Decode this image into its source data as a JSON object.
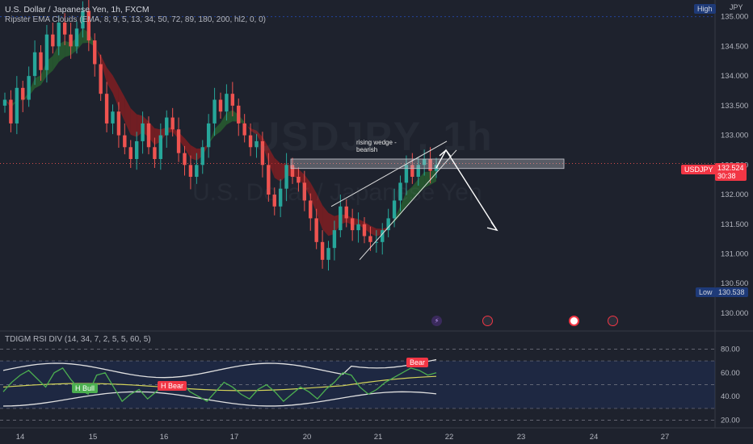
{
  "header": {
    "title": "U.S. Dollar / Japanese Yen, 1h, FXCM",
    "indicator": "Ripster EMA Clouds (EMA, 8, 9, 5, 13, 34, 50, 72, 89, 180, 200, hl2, 0, 0)",
    "currency": "JPY"
  },
  "watermark": {
    "symbol": "USDJPY, 1h",
    "name": "U.S. Dollar / Japanese Yen"
  },
  "tags": {
    "high": "High",
    "low": "Low",
    "low_value": "130.538",
    "symbol": "USDJPY",
    "price": "132.524",
    "countdown": "30:38"
  },
  "annotation": {
    "line1": "rising wedge -",
    "line2": "bearish"
  },
  "events": [
    {
      "icon": "lightning-event-icon",
      "color": "#7b3fbf"
    },
    {
      "icon": "us-flag-event-icon",
      "color": "#f23645"
    },
    {
      "icon": "japan-flag-event-icon",
      "color": "#f23645"
    },
    {
      "icon": "us-flag-event-icon",
      "color": "#f23645"
    }
  ],
  "rsi": {
    "title": "TDIGM RSI DIV (14, 34, 7, 2, 5, 5, 60, 5)",
    "labels": {
      "h_bull": "H Bull",
      "h_bear_1": "H Bear",
      "h_bear_2": "Bear"
    }
  },
  "colors": {
    "background": "#1e222d",
    "up": "#26a69a",
    "down": "#ef5350",
    "cloud_bull": "#2e7d32",
    "cloud_bear": "#b71c1c",
    "accent": "#2962ff"
  },
  "chart_data": [
    {
      "type": "candlestick",
      "title": "U.S. Dollar / Japanese Yen, 1h, FXCM",
      "ylabel": "JPY",
      "ylim": [
        129.7,
        135.2
      ],
      "yticks": [
        130.0,
        130.5,
        131.0,
        131.5,
        132.0,
        132.5,
        133.0,
        133.5,
        134.0,
        134.5,
        135.0
      ],
      "x_day_labels": [
        "14",
        "15",
        "16",
        "17",
        "20",
        "21",
        "22",
        "23",
        "24",
        "27"
      ],
      "current_price": 132.524,
      "session_high_line": 135.0,
      "session_low": 130.538,
      "resistance_zone": [
        132.44,
        132.6
      ],
      "close_path": [
        133.6,
        133.2,
        133.8,
        133.6,
        134.0,
        134.4,
        134.1,
        134.7,
        134.5,
        134.9,
        134.7,
        134.5,
        134.8,
        135.1,
        134.6,
        134.2,
        133.7,
        133.2,
        133.4,
        133.0,
        132.8,
        132.6,
        132.9,
        133.2,
        132.8,
        132.6,
        133.0,
        133.3,
        133.1,
        132.7,
        132.5,
        132.3,
        132.5,
        132.8,
        133.2,
        133.6,
        133.4,
        133.7,
        133.5,
        133.2,
        133.0,
        132.8,
        132.9,
        132.5,
        132.0,
        131.8,
        132.1,
        132.5,
        132.3,
        132.2,
        131.9,
        131.6,
        131.2,
        130.9,
        131.1,
        131.4,
        131.8,
        131.6,
        131.4,
        131.5,
        131.3,
        131.2,
        131.2,
        131.4,
        131.6,
        131.9,
        132.2,
        132.5,
        132.3,
        132.5,
        132.6,
        132.4,
        132.5
      ],
      "wedge_upper": [
        [
          131.8,
          132.9
        ]
      ],
      "wedge_lower": [
        [
          130.9,
          132.75
        ]
      ],
      "projection": [
        132.75,
        131.4
      ]
    },
    {
      "type": "line",
      "title": "TDIGM RSI DIV (14, 34, 7, 2, 5, 5, 60, 5)",
      "ylim": [
        15,
        85
      ],
      "yticks": [
        20.0,
        40.0,
        60.0,
        80.0
      ],
      "levels": [
        80,
        70,
        50,
        30,
        20
      ],
      "series": [
        {
          "values": [
            44,
            52,
            58,
            62,
            55,
            48,
            60,
            64,
            54,
            46,
            42,
            58,
            60,
            48,
            36,
            42,
            46,
            38,
            44,
            50,
            46,
            52,
            44,
            40,
            36,
            44,
            52,
            48,
            42,
            38,
            46,
            50,
            44,
            36,
            42,
            48,
            44,
            38,
            46,
            52,
            60,
            58,
            48,
            42,
            46,
            52,
            56,
            60,
            64,
            62,
            58,
            60
          ]
        }
      ]
    }
  ]
}
